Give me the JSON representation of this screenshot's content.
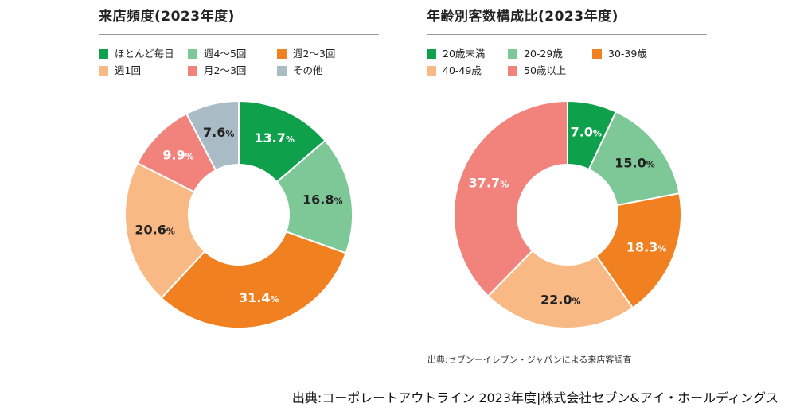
{
  "chart_data": [
    {
      "type": "pie",
      "title": "来店頻度(2023年度)",
      "percent_suffix": "%",
      "categories": [
        "ほとんど毎日",
        "週4～5回",
        "週2～3回",
        "週1回",
        "月2～3回",
        "その他"
      ],
      "values": [
        13.7,
        16.8,
        31.4,
        20.6,
        9.9,
        7.6
      ],
      "value_labels": [
        "13.7",
        "16.8",
        "31.4",
        "20.6",
        "9.9",
        "7.6"
      ],
      "colors": [
        "#0fa04b",
        "#7ec897",
        "#f08020",
        "#f9b984",
        "#f1837c",
        "#a9bcc5"
      ],
      "label_colors": [
        "#ffffff",
        "#222222",
        "#ffffff",
        "#222222",
        "#ffffff",
        "#222222"
      ],
      "legend": "top"
    },
    {
      "type": "pie",
      "title": "年齢別客数構成比(2023年度)",
      "percent_suffix": "%",
      "categories": [
        "20歳未満",
        "20-29歳",
        "30-39歳",
        "40-49歳",
        "50歳以上"
      ],
      "values": [
        7.0,
        15.0,
        18.3,
        22.0,
        37.7
      ],
      "value_labels": [
        "7.0",
        "15.0",
        "18.3",
        "22.0",
        "37.7"
      ],
      "colors": [
        "#0fa04b",
        "#7ec897",
        "#f08020",
        "#f9b984",
        "#f1837c"
      ],
      "label_colors": [
        "#ffffff",
        "#222222",
        "#ffffff",
        "#222222",
        "#ffffff"
      ],
      "legend": "top"
    }
  ],
  "note": "出典:セブンーイレブン・ジャパンによる来店客調査",
  "footer": "出典:コーポレートアウトライン 2023年度|株式会社セブン&アイ・ホールディングス"
}
